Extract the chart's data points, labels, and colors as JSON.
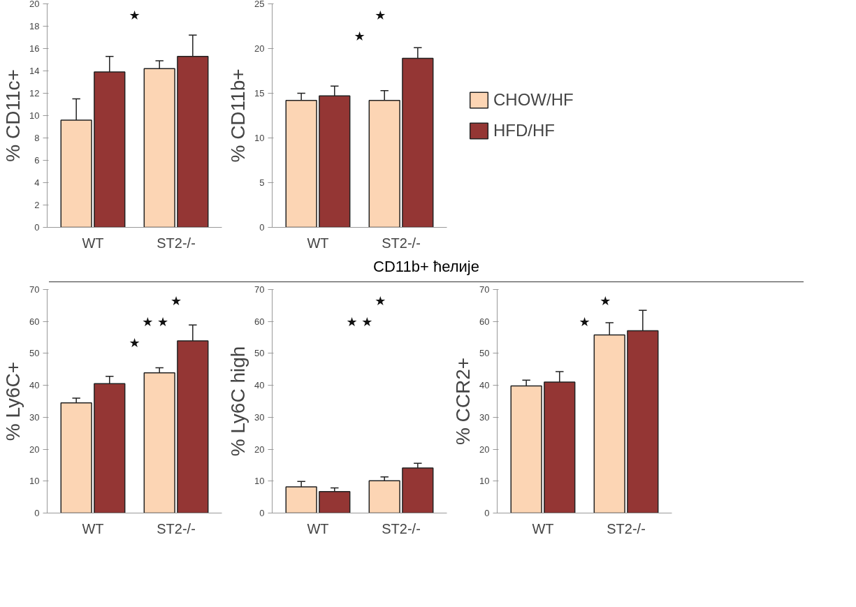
{
  "chart_data": [
    {
      "type": "bar",
      "ylabel": "% CD11c+",
      "categories": [
        "WT",
        "ST2-/-"
      ],
      "ylim": [
        0,
        20
      ],
      "yticks": [
        0,
        2,
        4,
        6,
        8,
        10,
        12,
        14,
        16,
        18,
        20
      ],
      "grid": false,
      "series": [
        {
          "color": "#fcd5b4",
          "values": [
            9.6,
            14.2
          ],
          "errors": [
            [
              9.6,
              11.5
            ],
            [
              14.2,
              14.9
            ]
          ]
        },
        {
          "color": "#943634",
          "values": [
            13.9,
            15.3
          ],
          "errors": [
            [
              13.9,
              15.3
            ],
            [
              15.3,
              17.2
            ]
          ]
        }
      ],
      "annotations": [
        "★"
      ]
    },
    {
      "type": "bar",
      "ylabel": "% CD11b+",
      "categories": [
        "WT",
        "ST2-/-"
      ],
      "ylim": [
        0,
        25
      ],
      "yticks": [
        0,
        5,
        10,
        15,
        20,
        25
      ],
      "grid": false,
      "legend": "right",
      "series": [
        {
          "name": "CHOW/HF",
          "color": "#fcd5b4",
          "values": [
            14.2,
            14.2
          ],
          "errors": [
            [
              14.2,
              15.0
            ],
            [
              14.2,
              15.3
            ]
          ]
        },
        {
          "name": "HFD/HF",
          "color": "#943634",
          "values": [
            14.7,
            18.9
          ],
          "errors": [
            [
              14.7,
              15.8
            ],
            [
              18.9,
              20.1
            ]
          ]
        }
      ],
      "annotations": [
        "★",
        "★"
      ]
    },
    {
      "type": "other",
      "title": "CD11b+ ћелије"
    },
    {
      "type": "bar",
      "ylabel": "% Ly6C+",
      "categories": [
        "WT",
        "ST2-/-"
      ],
      "ylim": [
        0,
        70
      ],
      "yticks": [
        0,
        10,
        20,
        30,
        40,
        50,
        60,
        70
      ],
      "grid": false,
      "series": [
        {
          "color": "#fcd5b4",
          "values": [
            34.5,
            43.9
          ],
          "errors": [
            [
              34.5,
              36.0
            ],
            [
              43.9,
              45.5
            ]
          ]
        },
        {
          "color": "#943634",
          "values": [
            40.5,
            53.9
          ],
          "errors": [
            [
              40.5,
              42.8
            ],
            [
              53.9,
              58.9
            ]
          ]
        }
      ],
      "annotations": [
        "★",
        "★ ★",
        "★"
      ]
    },
    {
      "type": "bar",
      "ylabel": "% Ly6C high",
      "categories": [
        "WT",
        "ST2-/-"
      ],
      "ylim": [
        0,
        70
      ],
      "yticks": [
        0,
        10,
        20,
        30,
        40,
        50,
        60,
        70
      ],
      "grid": false,
      "series": [
        {
          "color": "#fcd5b4",
          "values": [
            8.2,
            10.1
          ],
          "errors": [
            [
              8.2,
              9.9
            ],
            [
              10.1,
              11.3
            ]
          ]
        },
        {
          "color": "#943634",
          "values": [
            6.7,
            14.1
          ],
          "errors": [
            [
              6.7,
              7.9
            ],
            [
              14.1,
              15.6
            ]
          ]
        }
      ],
      "annotations": [
        "★ ★",
        "★"
      ]
    },
    {
      "type": "bar",
      "ylabel": "% CCR2+",
      "categories": [
        "WT",
        "ST2-/-"
      ],
      "ylim": [
        0,
        70
      ],
      "yticks": [
        0,
        10,
        20,
        30,
        40,
        50,
        60,
        70
      ],
      "grid": false,
      "series": [
        {
          "color": "#fcd5b4",
          "values": [
            39.8,
            55.8
          ],
          "errors": [
            [
              39.8,
              41.6
            ],
            [
              55.8,
              59.6
            ]
          ]
        },
        {
          "color": "#943634",
          "values": [
            41.0,
            57.1
          ],
          "errors": [
            [
              41.0,
              44.3
            ],
            [
              57.1,
              63.5
            ]
          ]
        }
      ],
      "annotations": [
        "★",
        "★"
      ]
    }
  ]
}
